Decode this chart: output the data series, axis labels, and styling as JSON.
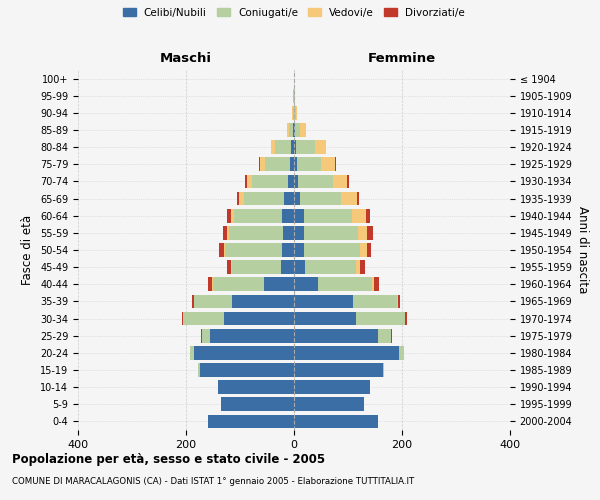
{
  "age_groups": [
    "0-4",
    "5-9",
    "10-14",
    "15-19",
    "20-24",
    "25-29",
    "30-34",
    "35-39",
    "40-44",
    "45-49",
    "50-54",
    "55-59",
    "60-64",
    "65-69",
    "70-74",
    "75-79",
    "80-84",
    "85-89",
    "90-94",
    "95-99",
    "100+"
  ],
  "birth_years": [
    "2000-2004",
    "1995-1999",
    "1990-1994",
    "1985-1989",
    "1980-1984",
    "1975-1979",
    "1970-1974",
    "1965-1969",
    "1960-1964",
    "1955-1959",
    "1950-1954",
    "1945-1949",
    "1940-1944",
    "1935-1939",
    "1930-1934",
    "1925-1929",
    "1920-1924",
    "1915-1919",
    "1910-1914",
    "1905-1909",
    "≤ 1904"
  ],
  "maschi": {
    "celibi": [
      160,
      135,
      140,
      175,
      185,
      155,
      130,
      115,
      55,
      25,
      22,
      20,
      22,
      18,
      12,
      8,
      5,
      2,
      0,
      0,
      0
    ],
    "coniugati": [
      0,
      0,
      0,
      2,
      8,
      15,
      75,
      70,
      95,
      90,
      105,
      100,
      90,
      75,
      65,
      45,
      30,
      8,
      2,
      1,
      0
    ],
    "vedovi": [
      0,
      0,
      0,
      0,
      0,
      0,
      0,
      0,
      1,
      2,
      3,
      4,
      5,
      8,
      10,
      10,
      8,
      3,
      1,
      0,
      0
    ],
    "divorziati": [
      0,
      0,
      0,
      0,
      0,
      2,
      3,
      3,
      8,
      8,
      8,
      8,
      8,
      4,
      3,
      2,
      0,
      0,
      0,
      0,
      0
    ]
  },
  "femmine": {
    "nubili": [
      155,
      130,
      140,
      165,
      195,
      155,
      115,
      110,
      45,
      20,
      18,
      18,
      18,
      12,
      8,
      5,
      4,
      2,
      0,
      0,
      0
    ],
    "coniugate": [
      0,
      0,
      0,
      2,
      8,
      25,
      90,
      80,
      100,
      95,
      105,
      100,
      90,
      75,
      65,
      45,
      35,
      10,
      3,
      1,
      0
    ],
    "vedove": [
      0,
      0,
      0,
      0,
      0,
      0,
      1,
      2,
      4,
      8,
      12,
      18,
      25,
      30,
      25,
      25,
      20,
      10,
      3,
      1,
      0
    ],
    "divorziate": [
      0,
      0,
      0,
      0,
      0,
      2,
      3,
      4,
      8,
      8,
      8,
      10,
      8,
      4,
      3,
      2,
      0,
      0,
      0,
      0,
      0
    ]
  },
  "colors": {
    "celibi": "#3a6ea5",
    "coniugati": "#b5cfa0",
    "vedovi": "#f5c87a",
    "divorziati": "#c0392b"
  },
  "xlim": 400,
  "title": "Popolazione per età, sesso e stato civile - 2005",
  "subtitle": "COMUNE DI MARACALAGONIS (CA) - Dati ISTAT 1° gennaio 2005 - Elaborazione TUTTITALIA.IT",
  "ylabel_left": "Fasce di età",
  "ylabel_right": "Anni di nascita",
  "xlabel_maschi": "Maschi",
  "xlabel_femmine": "Femmine",
  "legend_labels": [
    "Celibi/Nubili",
    "Coniugati/e",
    "Vedovi/e",
    "Divorziati/e"
  ],
  "background_color": "#f5f5f5"
}
